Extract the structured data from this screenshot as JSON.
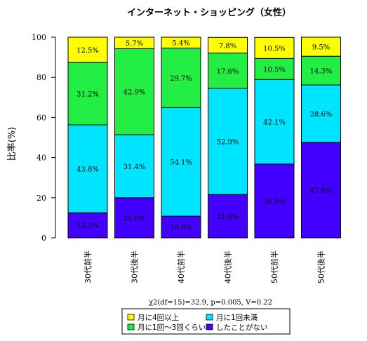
{
  "chart_data": {
    "type": "bar",
    "stacked": true,
    "title": "インターネット・ショッピング（女性）",
    "ylabel": "比率(%)",
    "ylim": [
      0,
      100
    ],
    "yticks": [
      0,
      20,
      40,
      60,
      80,
      100
    ],
    "categories": [
      "30代前半",
      "30代後半",
      "40代前半",
      "40代後半",
      "50代前半",
      "50代後半"
    ],
    "series": [
      {
        "name": "したことがない",
        "color": "#4400ff",
        "values": [
          12.5,
          20.0,
          10.8,
          21.6,
          36.8,
          47.6
        ],
        "labels": [
          "12.5%",
          "20.0%",
          "10.8%",
          "21.6%",
          "36.8%",
          "47.6%"
        ]
      },
      {
        "name": "月に1回未満",
        "color": "#00e5ff",
        "values": [
          43.8,
          31.4,
          54.1,
          52.9,
          42.1,
          28.6
        ],
        "labels": [
          "43.8%",
          "31.4%",
          "54.1%",
          "52.9%",
          "42.1%",
          "28.6%"
        ]
      },
      {
        "name": "月に1回～3回くらい",
        "color": "#22ee44",
        "values": [
          31.2,
          42.9,
          29.7,
          17.6,
          10.5,
          14.3
        ],
        "labels": [
          "31.2%",
          "42.9%",
          "29.7%",
          "17.6%",
          "10.5%",
          "14.3%"
        ]
      },
      {
        "name": "月に4回以上",
        "color": "#ffff00",
        "values": [
          12.5,
          5.7,
          5.4,
          7.8,
          10.5,
          9.5
        ],
        "labels": [
          "12.5%",
          "5.7%",
          "5.4%",
          "7.8%",
          "10.5%",
          "9.5%"
        ]
      }
    ],
    "annotation": "χ2(df=15)=32.9, p=0.005, V=0.22",
    "legend": {
      "placement": "bottom",
      "order": [
        3,
        1,
        2,
        0
      ]
    }
  }
}
